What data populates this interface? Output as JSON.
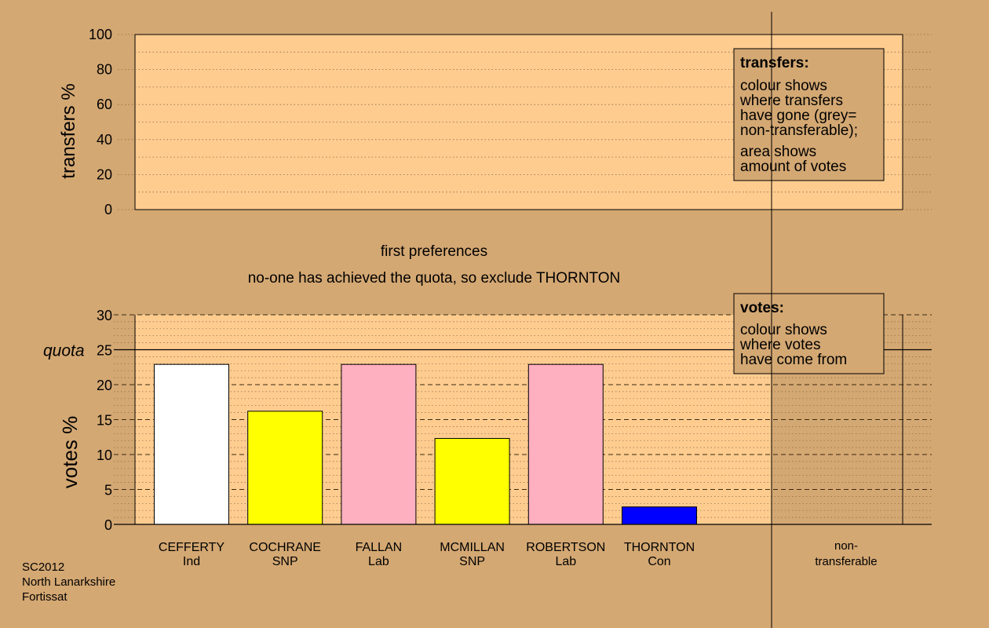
{
  "transfers_panel": {
    "ylabel": "transfers %",
    "ylim": [
      0,
      100
    ],
    "ticks": [
      "0",
      "20",
      "40",
      "60",
      "80",
      "100"
    ],
    "legend": {
      "title": "transfers:",
      "lines1": [
        "colour shows",
        "where transfers",
        "have gone (grey=",
        "non-transferable);"
      ],
      "lines2": [
        "area shows",
        "amount of votes"
      ]
    }
  },
  "stage_text": {
    "line1": "first preferences",
    "line2": "no-one has achieved the quota, so exclude THORNTON"
  },
  "chart_data": {
    "type": "bar",
    "ylabel": "votes %",
    "ylim": [
      0,
      30
    ],
    "ticks": [
      "0",
      "5",
      "10",
      "15",
      "20",
      "25",
      "30"
    ],
    "quota": {
      "label": "quota",
      "value": 25
    },
    "categories": [
      {
        "name": "CEFFERTY",
        "party": "Ind"
      },
      {
        "name": "COCHRANE",
        "party": "SNP"
      },
      {
        "name": "FALLAN",
        "party": "Lab"
      },
      {
        "name": "MCMILLAN",
        "party": "SNP"
      },
      {
        "name": "ROBERTSON",
        "party": "Lab"
      },
      {
        "name": "THORNTON",
        "party": "Con"
      }
    ],
    "values": [
      22.9,
      16.2,
      22.9,
      12.3,
      22.9,
      2.5
    ],
    "colors": [
      "#ffffff",
      "#ffff00",
      "#ffb0c0",
      "#ffff00",
      "#ffb0c0",
      "#0000ff"
    ],
    "nontransferable_label": [
      "non-",
      "transferable"
    ],
    "legend": {
      "title": "votes:",
      "lines": [
        "colour shows",
        "where votes",
        "have come from"
      ]
    }
  },
  "footer": {
    "lines": [
      "SC2012",
      "North Lanarkshire",
      "Fortissat"
    ]
  },
  "colors": {
    "background": "#d4a873",
    "panel_fill": "#ffcc90",
    "legend_fill": "#d4a873",
    "grid_dotted": "#8a6a40",
    "grid_dashed": "#3a2a10"
  }
}
